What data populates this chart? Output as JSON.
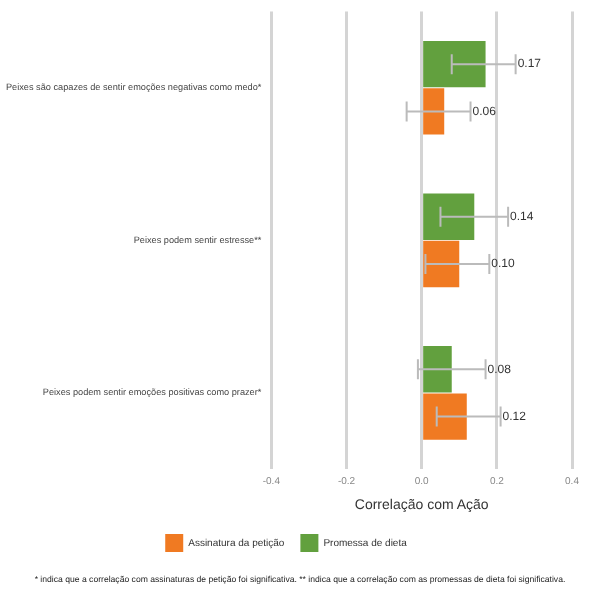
{
  "chart_data": {
    "type": "bar",
    "orientation": "horizontal",
    "xlabel": "Correlação com Ação",
    "categories": [
      "Peixes são capazes de sentir emoções negativas como medo*",
      "Peixes podem sentir estresse**",
      "Peixes podem sentir emoções positivas como prazer*"
    ],
    "series": [
      {
        "name": "Promessa de dieta",
        "color": "#62a03e",
        "values": [
          0.17,
          0.14,
          0.08
        ],
        "value_labels": [
          "0.17",
          "0.14",
          "0.08"
        ],
        "errors": [
          [
            0.08,
            0.25
          ],
          [
            0.05,
            0.23
          ],
          [
            -0.01,
            0.17
          ]
        ]
      },
      {
        "name": "Assinatura da petição",
        "color": "#f07a22",
        "values": [
          0.06,
          0.1,
          0.12
        ],
        "value_labels": [
          "0.06",
          "0.10",
          "0.12"
        ],
        "errors": [
          [
            -0.04,
            0.13
          ],
          [
            0.01,
            0.18
          ],
          [
            0.04,
            0.21
          ]
        ]
      }
    ],
    "xlim": [
      -0.4,
      0.4
    ],
    "xticks": [
      -0.4,
      -0.2,
      {
        "value": 0,
        "label": "0.0"
      },
      0.2,
      0.4
    ],
    "grid": "x",
    "legend": "bottom",
    "annotations": [
      "* indica que a correlação com assinaturas de petição foi significativa. ** indica que a correlação com as promessas de dieta foi significativa."
    ]
  }
}
